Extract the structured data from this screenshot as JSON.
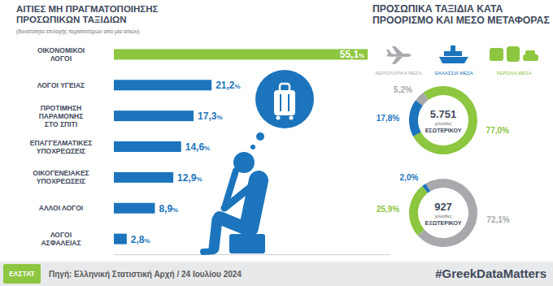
{
  "chart_data": [
    {
      "type": "bar",
      "orientation": "horizontal",
      "title": "ΑΙΤΙΕΣ ΜΗ ΠΡΑΓΜΑΤΟΠΟΙΗΣΗΣ\nΠΡΟΣΩΠΙΚΩΝ ΤΑΞΙΔΙΩΝ",
      "subtitle": "(δυνατότητα επιλογής περισσοτέρων από μία αιτιών)",
      "categories": [
        "ΟΙΚΟΝΟΜΙΚΟΙ\nΛΟΓΟΙ",
        "ΛΟΓΟΙ ΥΓΕΙΑΣ",
        "ΠΡΟΤΙΜΗΣΗ\nΠΑΡΑΜΟΝΗΣ\nΣΤΟ ΣΠΙΤΙ",
        "ΕΠΑΓΓΕΛΜΑΤΙΚΕΣ\nΥΠΟΧΡΕΩΣΕΙΣ",
        "ΟΙΚΟΓΕΝΕΙΑΚΕΣ\nΥΠΟΧΡΕΩΣΕΙΣ",
        "ΑΛΛΟΙ ΛΟΓΟΙ",
        "ΛΟΓΟΙ\nΑΣΦΑΛΕΙΑΣ"
      ],
      "values": [
        55.1,
        21.2,
        17.3,
        14.6,
        12.9,
        8.9,
        2.8
      ],
      "value_labels": [
        "55,1%",
        "21,2%",
        "17,3%",
        "14,6%",
        "12,9%",
        "8,9%",
        "2,8%"
      ],
      "colors": [
        "#8dc63f",
        "#1c75bc",
        "#1c75bc",
        "#1c75bc",
        "#1c75bc",
        "#1c75bc",
        "#1c75bc"
      ],
      "xlim": [
        0,
        60
      ],
      "grid": false,
      "tick_labels": false,
      "data_labels": true
    },
    {
      "type": "pie",
      "title": "ΠΡΟΣΩΠΙΚΑ ΤΑΞΙΔΙΑ ΚΑΤΑ\nΠΡΟΟΡΙΣΜΟ ΚΑΙ ΜΕΣΟ ΜΕΤΑΦΟΡΑΣ",
      "categories": [
        "ΑΕΡΟΠΟΡΙΚΑ ΜΕΣΑ",
        "ΘΑΛΑΣΣΙΑ ΜΕΣΑ",
        "ΧΕΡΣΑΙΑ ΜΕΣΑ"
      ],
      "colors": [
        "#a7a9ac",
        "#1c75bc",
        "#8dc63f"
      ],
      "legend": "top",
      "data_labels": true,
      "series": [
        {
          "name": "ΕΣΩΤΕΡΙΚΟΥ",
          "total": {
            "value": 5751,
            "label": "5.751"
          },
          "unit": "χιλιάδες",
          "values": [
            5.2,
            17.8,
            77.0
          ],
          "value_labels": [
            "5,2%",
            "17,8%",
            "77,0%"
          ]
        },
        {
          "name": "ΕΞΩΤΕΡΙΚΟΥ",
          "total": {
            "value": 927,
            "label": "927"
          },
          "unit": "χιλιάδες",
          "values": [
            72.1,
            2.0,
            25.9
          ],
          "value_labels": [
            "72,1%",
            "2,0%",
            "25,9%"
          ]
        }
      ]
    }
  ],
  "footer": {
    "logo": "ΕΛΣΤΑΤ",
    "source": "Πηγή: Ελληνική Στατιστική Αρχή / 24 Ιουλίου 2024",
    "hashtag": "#GreekDataMatters"
  }
}
